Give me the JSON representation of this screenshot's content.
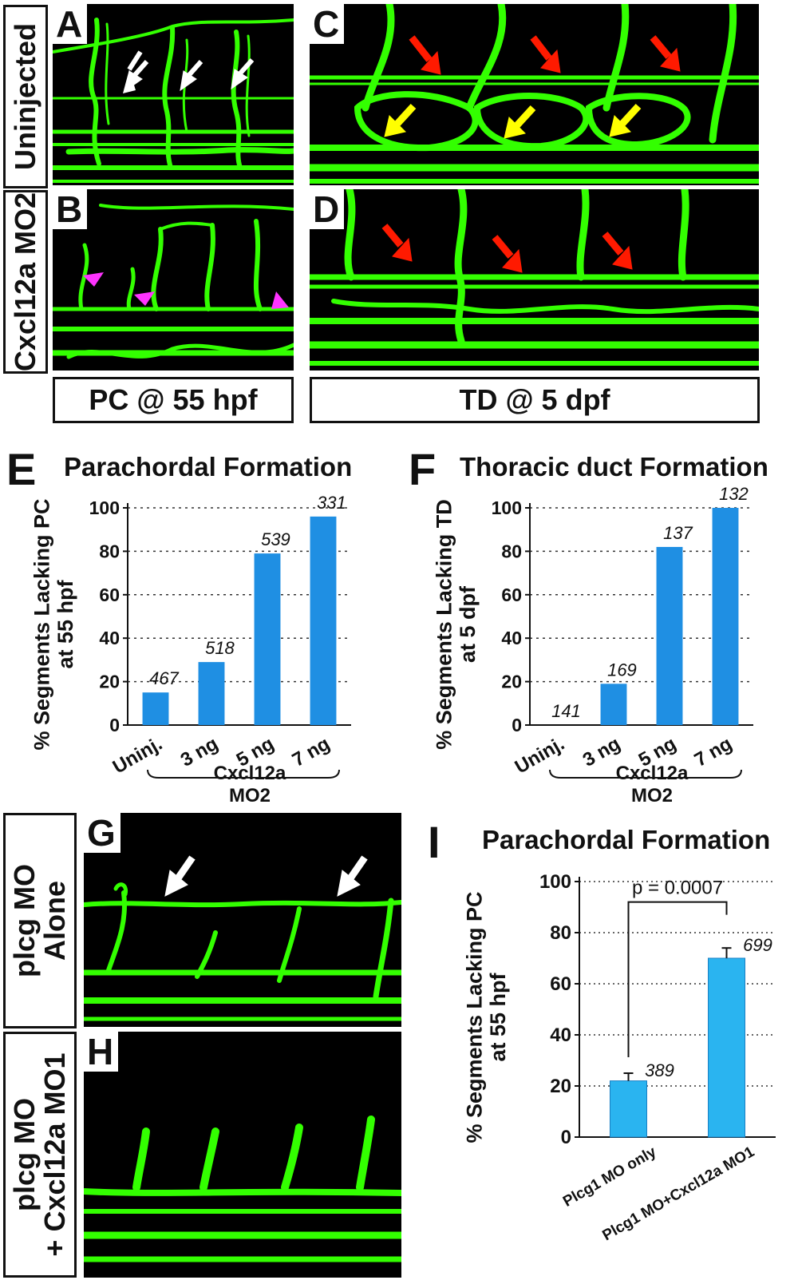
{
  "panels": {
    "A": "A",
    "B": "B",
    "C": "C",
    "D": "D",
    "E": "E",
    "F": "F",
    "G": "G",
    "H": "H",
    "I": "I"
  },
  "row_labels": {
    "uninjected": "Uninjected",
    "cxcl12a_mo2": "Cxcl12a MO2",
    "plcg_alone_1": "plcg MO",
    "plcg_alone_2": "Alone",
    "plcg_combo_1": "plcg MO",
    "plcg_combo_2": "+ Cxcl12a MO1"
  },
  "captions": {
    "pc": "PC @ 55 hpf",
    "td": "TD @ 5 dpf"
  },
  "colors": {
    "vessel": "#33ff00",
    "bar": "#1f8fe3",
    "bar_light": "#2ab4f0",
    "red_arrow": "#ff1a00",
    "yellow_arrow": "#ffff00",
    "white_arrow": "#ffffff",
    "magenta_arrowhead": "#ff33ff"
  },
  "chart_data": [
    {
      "panel": "E",
      "type": "bar",
      "title": "Parachordal Formation",
      "ylabel": "% Segments Lacking PC at 55 hpf",
      "categories": [
        "Uninj.",
        "3 ng",
        "5 ng",
        "7 ng"
      ],
      "values": [
        15,
        29,
        79,
        96
      ],
      "data_labels": [
        "467",
        "518",
        "539",
        "331"
      ],
      "group_label_1": "Cxcl12a",
      "group_label_2": "MO2",
      "ylim": [
        0,
        100
      ],
      "yticks": [
        "0",
        "20",
        "40",
        "60",
        "80",
        "100"
      ],
      "grid": "dotted horizontal"
    },
    {
      "panel": "F",
      "type": "bar",
      "title": "Thoracic duct Formation",
      "ylabel": "% Segments Lacking TD at 5 dpf",
      "categories": [
        "Uninj.",
        "3 ng",
        "5 ng",
        "7 ng"
      ],
      "values": [
        0,
        19,
        82,
        100
      ],
      "data_labels": [
        "141",
        "169",
        "137",
        "132"
      ],
      "group_label_1": "Cxcl12a",
      "group_label_2": "MO2",
      "ylim": [
        0,
        100
      ],
      "yticks": [
        "0",
        "20",
        "40",
        "60",
        "80",
        "100"
      ],
      "grid": "dotted horizontal"
    },
    {
      "panel": "I",
      "type": "bar",
      "title": "Parachordal Formation",
      "ylabel": "% Segments Lacking PC at 55 hpf",
      "categories": [
        "Plcg1 MO only",
        "Plcg1 MO+Cxcl12a MO1"
      ],
      "values": [
        22,
        70
      ],
      "errors": [
        3,
        4
      ],
      "data_labels": [
        "389",
        "699"
      ],
      "significance": "p = 0.0007",
      "ylim": [
        0,
        100
      ],
      "yticks": [
        "0",
        "20",
        "40",
        "60",
        "80",
        "100"
      ],
      "grid": "dotted horizontal"
    }
  ]
}
